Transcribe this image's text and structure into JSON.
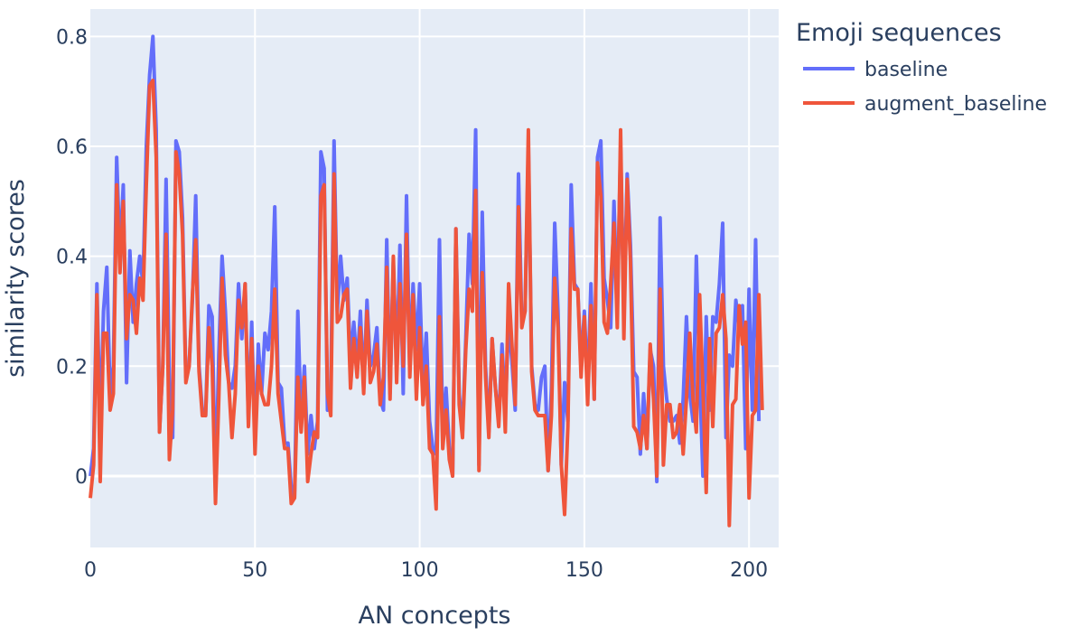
{
  "chart_data": {
    "type": "line",
    "xlabel": "AN concepts",
    "ylabel": "similarity scores",
    "xlim": [
      0,
      209
    ],
    "ylim": [
      -0.13,
      0.85
    ],
    "x_ticks": [
      0,
      50,
      100,
      150,
      200
    ],
    "y_ticks": [
      0,
      0.2,
      0.4,
      0.6,
      0.8
    ],
    "y_tick_labels": [
      "0",
      "0.2",
      "0.4",
      "0.6",
      "0.8"
    ],
    "grid": true,
    "legend_title": "Emoji sequences",
    "legend_position": "right",
    "series": [
      {
        "name": "baseline",
        "color": "#636efa",
        "values": [
          0.0,
          0.05,
          0.35,
          0.08,
          0.3,
          0.38,
          0.15,
          0.2,
          0.58,
          0.4,
          0.53,
          0.17,
          0.41,
          0.28,
          0.35,
          0.4,
          0.35,
          0.6,
          0.73,
          0.8,
          0.63,
          0.08,
          0.2,
          0.54,
          0.17,
          0.07,
          0.61,
          0.59,
          0.47,
          0.18,
          0.2,
          0.32,
          0.51,
          0.2,
          0.12,
          0.11,
          0.31,
          0.29,
          -0.03,
          0.22,
          0.4,
          0.3,
          0.17,
          0.16,
          0.2,
          0.35,
          0.25,
          0.35,
          0.1,
          0.28,
          0.06,
          0.24,
          0.15,
          0.26,
          0.23,
          0.3,
          0.49,
          0.17,
          0.16,
          0.06,
          0.06,
          -0.02,
          -0.04,
          0.3,
          0.1,
          0.2,
          0.04,
          0.11,
          0.05,
          0.1,
          0.59,
          0.56,
          0.12,
          0.15,
          0.61,
          0.3,
          0.4,
          0.32,
          0.36,
          0.21,
          0.28,
          0.2,
          0.3,
          0.16,
          0.32,
          0.2,
          0.22,
          0.27,
          0.14,
          0.12,
          0.43,
          0.15,
          0.39,
          0.2,
          0.42,
          0.15,
          0.51,
          0.2,
          0.35,
          0.23,
          0.35,
          0.16,
          0.26,
          0.1,
          0.05,
          0.04,
          0.43,
          0.07,
          0.16,
          0.05,
          0.0,
          0.45,
          0.15,
          0.08,
          0.25,
          0.44,
          0.35,
          0.63,
          0.02,
          0.48,
          0.2,
          0.08,
          0.25,
          0.16,
          0.1,
          0.24,
          0.12,
          0.28,
          0.21,
          0.12,
          0.55,
          0.28,
          0.3,
          0.6,
          0.2,
          0.13,
          0.12,
          0.18,
          0.2,
          0.01,
          0.16,
          0.46,
          0.3,
          0.02,
          0.17,
          0.1,
          0.53,
          0.35,
          0.34,
          0.2,
          0.3,
          0.16,
          0.35,
          0.14,
          0.58,
          0.61,
          0.36,
          0.32,
          0.27,
          0.5,
          0.3,
          0.6,
          0.3,
          0.55,
          0.42,
          0.19,
          0.18,
          0.04,
          0.15,
          0.05,
          0.23,
          0.2,
          -0.01,
          0.47,
          0.2,
          0.14,
          0.1,
          0.1,
          0.11,
          0.06,
          0.14,
          0.29,
          0.15,
          0.1,
          0.4,
          0.18,
          0.0,
          0.29,
          0.12,
          0.29,
          0.28,
          0.35,
          0.46,
          0.07,
          0.22,
          0.2,
          0.32,
          0.27,
          0.31,
          0.05,
          0.34,
          0.12,
          0.43,
          0.1
        ]
      },
      {
        "name": "augment_baseline",
        "color": "#ef553b",
        "values": [
          -0.04,
          0.02,
          0.33,
          -0.01,
          0.26,
          0.26,
          0.12,
          0.15,
          0.53,
          0.37,
          0.5,
          0.25,
          0.33,
          0.32,
          0.26,
          0.36,
          0.32,
          0.53,
          0.71,
          0.72,
          0.58,
          0.08,
          0.2,
          0.44,
          0.03,
          0.12,
          0.59,
          0.55,
          0.44,
          0.17,
          0.2,
          0.33,
          0.43,
          0.19,
          0.11,
          0.11,
          0.27,
          0.2,
          -0.05,
          0.14,
          0.36,
          0.22,
          0.17,
          0.07,
          0.15,
          0.32,
          0.27,
          0.35,
          0.09,
          0.25,
          0.04,
          0.2,
          0.15,
          0.13,
          0.13,
          0.2,
          0.34,
          0.15,
          0.1,
          0.05,
          0.05,
          -0.05,
          -0.04,
          0.18,
          0.08,
          0.18,
          -0.01,
          0.04,
          0.08,
          0.07,
          0.51,
          0.53,
          0.15,
          0.11,
          0.55,
          0.28,
          0.29,
          0.33,
          0.34,
          0.16,
          0.25,
          0.18,
          0.27,
          0.15,
          0.3,
          0.17,
          0.19,
          0.24,
          0.13,
          0.18,
          0.38,
          0.14,
          0.4,
          0.17,
          0.35,
          0.2,
          0.44,
          0.18,
          0.33,
          0.14,
          0.27,
          0.13,
          0.2,
          0.05,
          0.04,
          -0.06,
          0.29,
          0.05,
          0.12,
          0.03,
          0.0,
          0.45,
          0.13,
          0.07,
          0.23,
          0.34,
          0.3,
          0.52,
          0.01,
          0.37,
          0.18,
          0.07,
          0.25,
          0.16,
          0.09,
          0.22,
          0.08,
          0.35,
          0.24,
          0.13,
          0.49,
          0.27,
          0.3,
          0.63,
          0.19,
          0.12,
          0.11,
          0.11,
          0.11,
          0.01,
          0.11,
          0.36,
          0.27,
          0.02,
          -0.07,
          0.09,
          0.45,
          0.34,
          0.34,
          0.18,
          0.29,
          0.13,
          0.31,
          0.14,
          0.57,
          0.51,
          0.28,
          0.26,
          0.35,
          0.46,
          0.27,
          0.63,
          0.25,
          0.54,
          0.39,
          0.09,
          0.08,
          0.05,
          0.11,
          0.05,
          0.24,
          0.14,
          0.0,
          0.34,
          0.02,
          0.13,
          0.13,
          0.07,
          0.08,
          0.13,
          0.04,
          0.14,
          0.26,
          0.14,
          0.08,
          0.33,
          0.16,
          -0.03,
          0.25,
          0.09,
          0.26,
          0.27,
          0.33,
          0.25,
          -0.09,
          0.13,
          0.14,
          0.31,
          0.24,
          0.28,
          -0.04,
          0.11,
          0.12,
          0.33,
          0.12
        ]
      }
    ]
  }
}
